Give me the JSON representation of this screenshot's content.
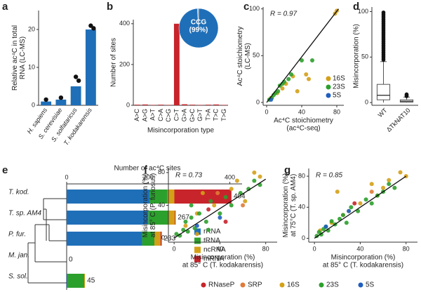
{
  "chart_data": [
    {
      "type": "bar",
      "panel": "a",
      "ylabel": [
        "Relative ac⁴C in total",
        "RNA (LC-MS)"
      ],
      "categories": [
        "H. sapiens",
        "S. cerevisiae",
        "S. solfataricus",
        "T. kodakarensis"
      ],
      "values": [
        1,
        1.5,
        5,
        20
      ],
      "replicates": [
        [
          1.5
        ],
        [
          2
        ],
        [
          7.5,
          6.5
        ],
        [
          21,
          20.3
        ]
      ],
      "color": "#1f6fb8",
      "ylim": [
        0,
        25
      ],
      "yticks": [
        0,
        10,
        20
      ]
    },
    {
      "type": "bar",
      "panel": "b",
      "ylabel": "Number of sites",
      "xlabel": "Misincorporation type",
      "categories": [
        "A>C",
        "A>G",
        "A>T",
        "C>A",
        "C>G",
        "C>T",
        "G>A",
        "G>C",
        "G>T",
        "T>A",
        "T>C",
        "T>G"
      ],
      "values": [
        3,
        4,
        2,
        3,
        2,
        400,
        5,
        3,
        2,
        3,
        4,
        2
      ],
      "color": "#c8242b",
      "ylim": [
        0,
        420
      ],
      "yticks": [
        0,
        200,
        400
      ],
      "inset": {
        "type": "pie",
        "categories": [
          "CCG",
          null
        ],
        "values": [
          99,
          1
        ],
        "value_labels": [
          "(99%)",
          null
        ],
        "colors": [
          "#1f6fb8",
          "#9aa8b8"
        ]
      }
    },
    {
      "type": "scatter",
      "panel": "c",
      "annotation": "R = 0.97",
      "xlabel": [
        "Ac⁴C stoichiometry",
        "(ac⁴C-seq)"
      ],
      "ylabel": [
        "Ac⁴C stoichiometry",
        "(LC-MS)"
      ],
      "xlim": [
        -4,
        88
      ],
      "ylim": [
        -3,
        102
      ],
      "xticks": [
        0,
        40,
        80
      ],
      "yticks": [
        0,
        50,
        100
      ],
      "fit": {
        "x": [
          0,
          82
        ],
        "y": [
          0,
          100
        ]
      },
      "legend": "lower right",
      "series": [
        {
          "name": "16S",
          "color": "#d4a017",
          "x": [
            5,
            12,
            18,
            22,
            30,
            35,
            45,
            48,
            78,
            80
          ],
          "y": [
            5,
            10,
            15,
            20,
            28,
            12,
            30,
            25,
            95,
            98
          ]
        },
        {
          "name": "23S",
          "color": "#2ca02c",
          "x": [
            3,
            6,
            8,
            10,
            13,
            15,
            18,
            20,
            25,
            28,
            40,
            52
          ],
          "y": [
            3,
            5,
            8,
            10,
            12,
            18,
            20,
            22,
            25,
            30,
            45,
            45
          ]
        },
        {
          "name": "5S",
          "color": "#1f5fbf",
          "x": [
            5
          ],
          "y": [
            3
          ]
        }
      ]
    },
    {
      "type": "box",
      "panel": "d",
      "ylabel": "Misincorporation (%)",
      "categories": [
        "WT",
        "ΔTkNAT10"
      ],
      "ylim": [
        -3,
        105
      ],
      "yticks": [
        0,
        50,
        100
      ],
      "min": [
        0,
        0
      ],
      "q1": [
        3,
        0.5
      ],
      "median": [
        8,
        1.5
      ],
      "q3": [
        20,
        3
      ],
      "max": [
        45,
        6
      ],
      "outliers": [
        [
          47,
          49,
          51,
          53,
          55,
          57,
          59,
          61,
          63,
          65,
          67,
          69,
          71,
          73,
          75,
          77,
          79,
          81,
          83,
          85,
          87,
          89,
          91,
          93,
          95,
          97,
          99
        ],
        [
          7,
          8,
          9
        ]
      ]
    },
    {
      "type": "stacked_barh",
      "panel": "e",
      "xlabel": "Number of ac⁴C sites",
      "categories": [
        "T. kod.",
        "T. sp. AM4",
        "P. fur.",
        "M. jan.",
        "S. sol."
      ],
      "series": [
        {
          "name": "rRNA",
          "color": "#1f6fb8",
          "values": [
            204,
            200,
            185,
            0,
            3
          ]
        },
        {
          "name": "tRNA",
          "color": "#2ca02c",
          "values": [
            43,
            50,
            30,
            0,
            40
          ]
        },
        {
          "name": "ncRNA",
          "color": "#d4a017",
          "values": [
            17,
            15,
            15,
            0,
            2
          ]
        },
        {
          "name": "mRNA",
          "color": "#c8242b",
          "values": [
            140,
            2,
            3,
            0,
            0
          ]
        }
      ],
      "totals": [
        404,
        267,
        233,
        0,
        45
      ],
      "xlim": [
        0,
        430
      ],
      "xticks": [
        0,
        200,
        400
      ]
    },
    {
      "type": "scatter",
      "panel": "f",
      "annotation": "R = 0.73",
      "xlabel": [
        "Misincorporation (%)",
        "at 85° C (T. kodakarensis)"
      ],
      "ylabel": [
        "Misincorporation (%)",
        "at 85° C (P. furiosus)"
      ],
      "xlim": [
        -5,
        90
      ],
      "ylim": [
        -5,
        85
      ],
      "xticks": [
        0,
        40,
        80
      ],
      "yticks": [
        0,
        40,
        80
      ],
      "fit": {
        "x": [
          0,
          80
        ],
        "y": [
          0,
          72
        ]
      },
      "legend": "bottom",
      "series": [
        {
          "name": "RNaseP",
          "color": "#c8242b",
          "x": [
            30,
            45
          ],
          "y": [
            35,
            20
          ]
        },
        {
          "name": "SRP",
          "color": "#e07b39",
          "x": [
            38,
            60
          ],
          "y": [
            55,
            40
          ]
        },
        {
          "name": "16S",
          "color": "#d4a017",
          "x": [
            10,
            20,
            25,
            35,
            50,
            55,
            62,
            70,
            75,
            20
          ],
          "y": [
            15,
            30,
            55,
            40,
            60,
            70,
            45,
            80,
            75,
            5
          ]
        },
        {
          "name": "23S",
          "color": "#2ca02c",
          "x": [
            2,
            5,
            8,
            10,
            12,
            15,
            18,
            22,
            28,
            32,
            40,
            45,
            50,
            58,
            65,
            70,
            75,
            30,
            15
          ],
          "y": [
            5,
            3,
            10,
            20,
            8,
            25,
            12,
            30,
            20,
            45,
            30,
            50,
            40,
            55,
            60,
            70,
            65,
            10,
            40
          ]
        },
        {
          "name": "5S",
          "color": "#1f5fbf",
          "x": [
            20,
            40
          ],
          "y": [
            15,
            25
          ]
        }
      ]
    },
    {
      "type": "scatter",
      "panel": "g",
      "annotation": "R = 0.85",
      "xlabel": [
        "Misincorporation (%)",
        "at 85° C (T. kodakarensis)"
      ],
      "ylabel": [
        "Misincorporation (%)",
        "at 75°C (T. sp. AM4)"
      ],
      "xlim": [
        -5,
        90
      ],
      "ylim": [
        -5,
        90
      ],
      "xticks": [
        0,
        40,
        80
      ],
      "yticks": [
        0,
        40,
        80
      ],
      "fit": {
        "x": [
          0,
          80
        ],
        "y": [
          0,
          80
        ]
      },
      "series": [
        {
          "name": "RNaseP",
          "color": "#c8242b",
          "x": [
            35
          ],
          "y": [
            45
          ]
        },
        {
          "name": "SRP",
          "color": "#e07b39",
          "x": [
            25,
            50
          ],
          "y": [
            30,
            60
          ]
        },
        {
          "name": "16S",
          "color": "#d4a017",
          "x": [
            5,
            15,
            20,
            30,
            40,
            50,
            55,
            60,
            65,
            75,
            80
          ],
          "y": [
            10,
            20,
            60,
            35,
            45,
            70,
            55,
            65,
            75,
            85,
            80
          ]
        },
        {
          "name": "23S",
          "color": "#2ca02c",
          "x": [
            2,
            4,
            6,
            8,
            10,
            12,
            15,
            18,
            22,
            25,
            28,
            32,
            38,
            45,
            50,
            55,
            60,
            65,
            70
          ],
          "y": [
            3,
            8,
            5,
            12,
            15,
            10,
            22,
            18,
            25,
            30,
            20,
            40,
            35,
            50,
            45,
            55,
            60,
            70,
            65
          ]
        },
        {
          "name": "5S",
          "color": "#1f5fbf",
          "x": [
            10,
            30
          ],
          "y": [
            15,
            35
          ]
        }
      ]
    }
  ]
}
